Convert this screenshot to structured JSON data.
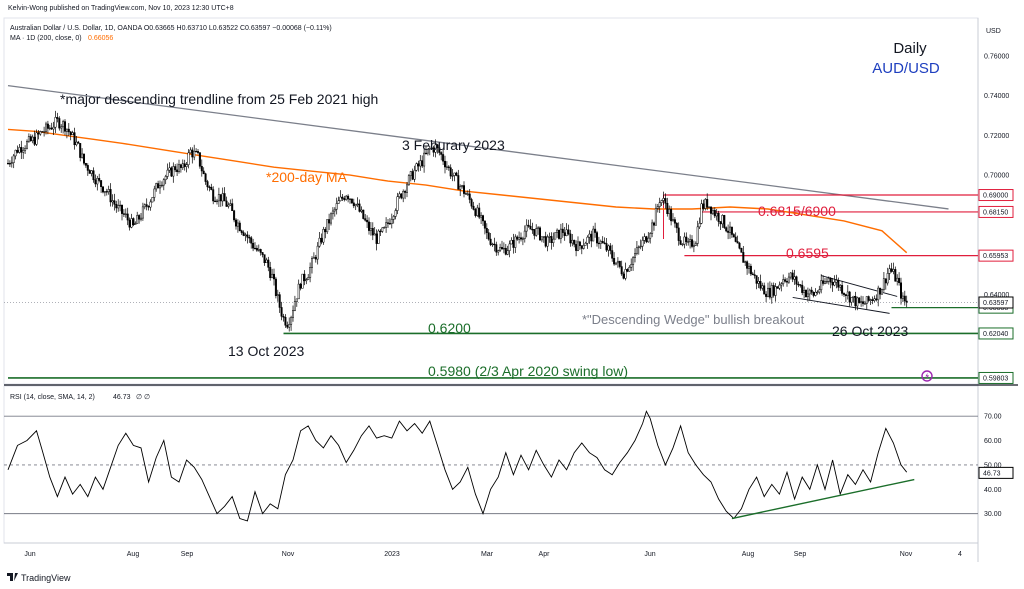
{
  "header": {
    "publisher": "Kelvin-Wong published on TradingView.com, Nov 10, 2023 12:30 UTC+8",
    "symbol_line": "Australian Dollar / U.S. Dollar, 1D, OANDA  O0.63665  H0.63710  L0.63522  C0.63597  −0.00068 (−0.11%)",
    "ma_label": "MA · 1D (200, close, 0)",
    "ma_value": "0.66056",
    "rsi_label": "RSI (14, close, SMA, 14, 2)",
    "rsi_value": "46.73",
    "rsi_extra": "∅  ∅",
    "currency": "USD",
    "footer_brand": "TradingView"
  },
  "title": {
    "line1": "Daily",
    "line2": "AUD/USD"
  },
  "annotations": {
    "trendline": "*major descending trendline from 25 Feb 2021 high",
    "feb_high": "3 Feburary 2023",
    "ma200": "*200-day MA",
    "zone_upper": "0.6815/6900",
    "level_6595": "0.6595",
    "wedge": "*\"Descending Wedge\" bullish breakout",
    "oct26": "26 Oct 2023",
    "level_6200": "0.6200",
    "oct13": "13 Oct 2023",
    "level_5980": "0.5980 (2/3 Apr 2020 swing low)"
  },
  "colors": {
    "up": "#ffffff",
    "down": "#000000",
    "ma": "#ff6d00",
    "resistance": "#e01e3c",
    "support": "#1b6e2a",
    "trend": "#7b7f8a",
    "accent_blue": "#1e3fbf",
    "last_price": "#000000"
  },
  "chart_data": [
    {
      "type": "candlestick",
      "title": "AUD/USD",
      "x_ticks": [
        "Jun",
        "Aug",
        "Sep",
        "Nov",
        "2023",
        "Mar",
        "Apr",
        "Jun",
        "Aug",
        "Sep",
        "Nov",
        "4"
      ],
      "y_ticks": [
        "0.76000",
        "0.74000",
        "0.72000",
        "0.70000",
        "0.66000",
        "0.64000",
        "0.62000"
      ],
      "ylim": [
        0.596,
        0.778
      ],
      "close_path": [
        [
          0,
          0.706
        ],
        [
          5,
          0.713
        ],
        [
          10,
          0.716
        ],
        [
          14,
          0.718
        ],
        [
          18,
          0.722
        ],
        [
          22,
          0.724
        ],
        [
          26,
          0.727
        ],
        [
          30,
          0.725
        ],
        [
          34,
          0.719
        ],
        [
          37,
          0.714
        ],
        [
          40,
          0.706
        ],
        [
          43,
          0.703
        ],
        [
          47,
          0.697
        ],
        [
          52,
          0.692
        ],
        [
          57,
          0.684
        ],
        [
          62,
          0.679
        ],
        [
          66,
          0.674
        ],
        [
          70,
          0.68
        ],
        [
          75,
          0.688
        ],
        [
          80,
          0.697
        ],
        [
          85,
          0.701
        ],
        [
          88,
          0.704
        ],
        [
          92,
          0.703
        ],
        [
          96,
          0.712
        ],
        [
          100,
          0.709
        ],
        [
          104,
          0.697
        ],
        [
          108,
          0.69
        ],
        [
          112,
          0.689
        ],
        [
          117,
          0.683
        ],
        [
          120,
          0.677
        ],
        [
          124,
          0.672
        ],
        [
          128,
          0.666
        ],
        [
          132,
          0.661
        ],
        [
          136,
          0.656
        ],
        [
          139,
          0.649
        ],
        [
          141,
          0.641
        ],
        [
          143,
          0.634
        ],
        [
          145,
          0.628
        ],
        [
          147,
          0.626
        ],
        [
          149,
          0.63
        ],
        [
          151,
          0.637
        ],
        [
          154,
          0.646
        ],
        [
          158,
          0.651
        ],
        [
          162,
          0.66
        ],
        [
          166,
          0.671
        ],
        [
          170,
          0.679
        ],
        [
          174,
          0.686
        ],
        [
          178,
          0.691
        ],
        [
          182,
          0.687
        ],
        [
          186,
          0.68
        ],
        [
          190,
          0.673
        ],
        [
          194,
          0.668
        ],
        [
          198,
          0.672
        ],
        [
          202,
          0.68
        ],
        [
          206,
          0.689
        ],
        [
          210,
          0.696
        ],
        [
          214,
          0.702
        ],
        [
          218,
          0.707
        ],
        [
          222,
          0.713
        ],
        [
          225,
          0.714
        ],
        [
          228,
          0.71
        ],
        [
          232,
          0.703
        ],
        [
          236,
          0.697
        ],
        [
          240,
          0.692
        ],
        [
          244,
          0.686
        ],
        [
          248,
          0.679
        ],
        [
          252,
          0.67
        ],
        [
          256,
          0.665
        ],
        [
          260,
          0.662
        ],
        [
          264,
          0.664
        ],
        [
          268,
          0.668
        ],
        [
          272,
          0.672
        ],
        [
          276,
          0.673
        ],
        [
          280,
          0.67
        ],
        [
          284,
          0.666
        ],
        [
          288,
          0.669
        ],
        [
          292,
          0.672
        ],
        [
          296,
          0.668
        ],
        [
          300,
          0.664
        ],
        [
          304,
          0.667
        ],
        [
          308,
          0.67
        ],
        [
          312,
          0.666
        ],
        [
          316,
          0.662
        ],
        [
          320,
          0.656
        ],
        [
          324,
          0.651
        ],
        [
          328,
          0.657
        ],
        [
          332,
          0.663
        ],
        [
          336,
          0.669
        ],
        [
          340,
          0.677
        ],
        [
          343,
          0.688
        ],
        [
          346,
          0.686
        ],
        [
          350,
          0.676
        ],
        [
          354,
          0.668
        ],
        [
          358,
          0.664
        ],
        [
          362,
          0.668
        ],
        [
          365,
          0.684
        ],
        [
          368,
          0.686
        ],
        [
          372,
          0.681
        ],
        [
          376,
          0.677
        ],
        [
          380,
          0.671
        ],
        [
          384,
          0.663
        ],
        [
          388,
          0.656
        ],
        [
          392,
          0.65
        ],
        [
          396,
          0.644
        ],
        [
          400,
          0.641
        ],
        [
          404,
          0.643
        ],
        [
          408,
          0.648
        ],
        [
          412,
          0.649
        ],
        [
          416,
          0.645
        ],
        [
          420,
          0.641
        ],
        [
          424,
          0.64
        ],
        [
          428,
          0.644
        ],
        [
          432,
          0.648
        ],
        [
          436,
          0.646
        ],
        [
          440,
          0.642
        ],
        [
          444,
          0.638
        ],
        [
          448,
          0.635
        ],
        [
          452,
          0.636
        ],
        [
          456,
          0.639
        ],
        [
          460,
          0.644
        ],
        [
          464,
          0.653
        ],
        [
          468,
          0.647
        ],
        [
          471,
          0.637
        ],
        [
          473,
          0.636
        ]
      ],
      "ma200_path": [
        [
          0,
          0.723
        ],
        [
          15,
          0.722
        ],
        [
          30,
          0.72
        ],
        [
          45,
          0.718
        ],
        [
          60,
          0.716
        ],
        [
          80,
          0.713
        ],
        [
          100,
          0.71
        ],
        [
          120,
          0.707
        ],
        [
          140,
          0.704
        ],
        [
          160,
          0.702
        ],
        [
          180,
          0.7
        ],
        [
          200,
          0.697
        ],
        [
          220,
          0.695
        ],
        [
          240,
          0.692
        ],
        [
          260,
          0.69
        ],
        [
          280,
          0.688
        ],
        [
          300,
          0.686
        ],
        [
          320,
          0.684
        ],
        [
          340,
          0.683
        ],
        [
          360,
          0.683
        ],
        [
          380,
          0.684
        ],
        [
          400,
          0.683
        ],
        [
          420,
          0.68
        ],
        [
          440,
          0.677
        ],
        [
          460,
          0.672
        ],
        [
          473,
          0.661
        ]
      ],
      "trendline": {
        "from": [
          0,
          0.745
        ],
        "to": [
          495,
          0.683
        ]
      },
      "horizontal_levels": [
        {
          "label": "0.69000",
          "value": 0.69,
          "start_bar": 345,
          "color": "#e01e3c"
        },
        {
          "label": "0.68150",
          "value": 0.6815,
          "start_bar": 365,
          "color": "#e01e3c"
        },
        {
          "label": "0.65953",
          "value": 0.65953,
          "start_bar": 356,
          "color": "#e01e3c"
        },
        {
          "label": "0.63338",
          "value": 0.63338,
          "start_bar": 465,
          "color": "#1b6e2a"
        },
        {
          "label": "0.62040",
          "value": 0.6204,
          "start_bar": 145,
          "color": "#1b6e2a"
        },
        {
          "label": "0.59803",
          "value": 0.59803,
          "start_bar": 0,
          "color": "#1b6e2a"
        }
      ],
      "last_price": {
        "label": "0.63597",
        "value": 0.63597
      },
      "wedge": {
        "upper": [
          [
            428,
            0.6495
          ],
          [
            468,
            0.639
          ]
        ],
        "lower": [
          [
            413,
            0.6385
          ],
          [
            464,
            0.6305
          ]
        ]
      }
    },
    {
      "type": "line",
      "title": "RSI (14, close, SMA, 14, 2)",
      "y_ticks": [
        "70.00",
        "60.00",
        "50.00",
        "40.00",
        "30.00"
      ],
      "ylim": [
        20,
        75
      ],
      "bands": [
        70,
        50,
        30
      ],
      "rsi_path": [
        [
          0,
          48
        ],
        [
          5,
          58
        ],
        [
          10,
          60
        ],
        [
          15,
          64
        ],
        [
          18,
          56
        ],
        [
          22,
          45
        ],
        [
          26,
          37
        ],
        [
          30,
          45
        ],
        [
          34,
          38
        ],
        [
          38,
          42
        ],
        [
          42,
          37
        ],
        [
          46,
          45
        ],
        [
          50,
          40
        ],
        [
          54,
          49
        ],
        [
          58,
          58
        ],
        [
          62,
          63
        ],
        [
          66,
          58
        ],
        [
          70,
          57
        ],
        [
          74,
          43
        ],
        [
          78,
          53
        ],
        [
          82,
          60
        ],
        [
          86,
          45
        ],
        [
          90,
          43
        ],
        [
          94,
          52
        ],
        [
          98,
          49
        ],
        [
          102,
          44
        ],
        [
          106,
          37
        ],
        [
          110,
          30
        ],
        [
          114,
          33
        ],
        [
          118,
          37
        ],
        [
          122,
          28
        ],
        [
          126,
          27
        ],
        [
          130,
          39
        ],
        [
          134,
          30
        ],
        [
          138,
          34
        ],
        [
          142,
          32
        ],
        [
          146,
          46
        ],
        [
          150,
          52
        ],
        [
          154,
          64
        ],
        [
          158,
          66
        ],
        [
          162,
          60
        ],
        [
          166,
          57
        ],
        [
          170,
          62
        ],
        [
          174,
          58
        ],
        [
          178,
          51
        ],
        [
          182,
          56
        ],
        [
          186,
          62
        ],
        [
          190,
          66
        ],
        [
          194,
          61
        ],
        [
          198,
          62
        ],
        [
          202,
          61
        ],
        [
          206,
          68
        ],
        [
          210,
          64
        ],
        [
          214,
          67
        ],
        [
          218,
          63
        ],
        [
          222,
          68
        ],
        [
          226,
          58
        ],
        [
          230,
          48
        ],
        [
          234,
          40
        ],
        [
          238,
          43
        ],
        [
          242,
          49
        ],
        [
          246,
          38
        ],
        [
          250,
          30
        ],
        [
          254,
          40
        ],
        [
          258,
          45
        ],
        [
          262,
          55
        ],
        [
          266,
          46
        ],
        [
          270,
          54
        ],
        [
          274,
          48
        ],
        [
          278,
          56
        ],
        [
          282,
          50
        ],
        [
          286,
          45
        ],
        [
          290,
          52
        ],
        [
          294,
          48
        ],
        [
          298,
          55
        ],
        [
          302,
          59
        ],
        [
          306,
          55
        ],
        [
          310,
          53
        ],
        [
          314,
          48
        ],
        [
          318,
          46
        ],
        [
          322,
          51
        ],
        [
          326,
          55
        ],
        [
          330,
          60
        ],
        [
          334,
          67
        ],
        [
          336,
          72
        ],
        [
          338,
          69
        ],
        [
          342,
          58
        ],
        [
          346,
          50
        ],
        [
          350,
          57
        ],
        [
          354,
          66
        ],
        [
          358,
          55
        ],
        [
          362,
          50
        ],
        [
          366,
          46
        ],
        [
          370,
          43
        ],
        [
          374,
          36
        ],
        [
          378,
          31
        ],
        [
          382,
          28
        ],
        [
          386,
          32
        ],
        [
          390,
          40
        ],
        [
          394,
          45
        ],
        [
          398,
          37
        ],
        [
          402,
          42
        ],
        [
          406,
          38
        ],
        [
          410,
          47
        ],
        [
          414,
          36
        ],
        [
          418,
          45
        ],
        [
          422,
          40
        ],
        [
          426,
          50
        ],
        [
          430,
          40
        ],
        [
          434,
          52
        ],
        [
          438,
          38
        ],
        [
          442,
          46
        ],
        [
          446,
          42
        ],
        [
          450,
          48
        ],
        [
          454,
          43
        ],
        [
          458,
          55
        ],
        [
          462,
          65
        ],
        [
          466,
          59
        ],
        [
          470,
          50
        ],
        [
          473,
          47
        ]
      ],
      "trendline": {
        "from": [
          381,
          28
        ],
        "to": [
          477,
          44
        ]
      }
    }
  ]
}
